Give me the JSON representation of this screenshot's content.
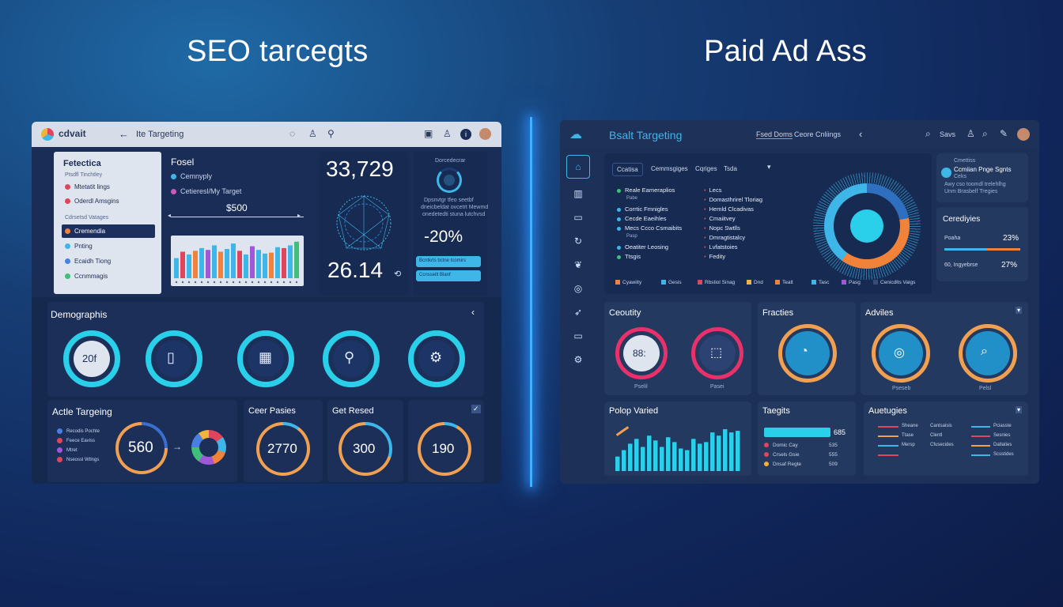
{
  "titles": {
    "left": "SEO tarcegts",
    "right": "Paid Ad Ass"
  },
  "left": {
    "topbar": {
      "logo": "cdvait",
      "tab": "Ite Targeting"
    },
    "sidebar": {
      "title": "Fetectica",
      "sub1": "Ptsdfl Tinchtley",
      "items1": [
        {
          "label": "Mtetatit lings",
          "color": "#e0455d"
        },
        {
          "label": "Oderdl Amsgins",
          "color": "#e0455d"
        }
      ],
      "sub2": "Cdrsetsd Vatages",
      "items2": [
        {
          "label": "Cremendia",
          "color": "#f0823a",
          "active": true
        },
        {
          "label": "Pnting",
          "color": "#3fb6e8"
        },
        {
          "label": "Ecaidh Tiong",
          "color": "#4a7fe0"
        },
        {
          "label": "Ccnmmagis",
          "color": "#3fbf7a"
        }
      ]
    },
    "focus": {
      "title": "Fosel",
      "opt1": "Cemnyply",
      "opt2": "Cetieresl/My Target",
      "value": "$500"
    },
    "bars": {
      "values": [
        44,
        58,
        52,
        60,
        66,
        62,
        72,
        58,
        64,
        76,
        60,
        52,
        70,
        62,
        54,
        56,
        68,
        66,
        72,
        80
      ],
      "colors": [
        "#3fb6e8",
        "#e0455d",
        "#3fb6e8",
        "#f0823a",
        "#3fb6e8",
        "#a058d8",
        "#3fb6e8",
        "#f0823a",
        "#3fb6e8",
        "#3fb6e8",
        "#e0455d",
        "#3fb6e8",
        "#a058d8",
        "#3fb6e8",
        "#3fb6e8",
        "#f0823a",
        "#3fb6e8",
        "#e0455d",
        "#3fb6e8",
        "#3fbf7a"
      ]
    },
    "metrics": {
      "big1": "33,729",
      "big2": "26.14"
    },
    "mini": {
      "title": "Dorcedecrar",
      "desc1": "Dpsnvtgr tfeo seetbf",
      "desc2": "dneicbeldat ovcetrt Mewmd",
      "desc3": "onedetedti stuna lutchvsd",
      "percent": "-20%",
      "btn1": "Bcntkrts bctne tcomirs",
      "btn2": "Ccnsseilt Blanf"
    },
    "demographics": {
      "title": "Demographis",
      "first_ring_text": "20f"
    },
    "bottom": {
      "targeting_title": "Actle Targeing",
      "legend": [
        {
          "label": "Recodis Pochte",
          "color": "#4a7fe0"
        },
        {
          "label": "Feece Eaviss",
          "color": "#e0455d"
        },
        {
          "label": "Mtret",
          "color": "#a058d8"
        },
        {
          "label": "Nseossl Wtlngs",
          "color": "#e0455d"
        }
      ],
      "targeting_value": "560",
      "c1_title": "Ceer Pasies",
      "c1_value": "2770",
      "c2_title": "Get Resed",
      "c2_value": "300",
      "c3_value": "190"
    }
  },
  "right": {
    "topbar": {
      "title": "Bsalt Targeting",
      "tab1": "Fsed Doms",
      "tab2": "Ceore Cnliings",
      "search": "Savs"
    },
    "tabs": [
      "Ccatisa",
      "Cemmsgiges",
      "Cqriges",
      "Tsda"
    ],
    "list1": [
      {
        "label": "Reale Eameraplios",
        "color": "#3fbf7a",
        "sub": "Pabe"
      },
      {
        "label": "Corrtic Fmnigles",
        "color": "#3fb6e8",
        "sub": ""
      },
      {
        "label": "Cecde Eaeihles",
        "color": "#3fb6e8",
        "sub": ""
      },
      {
        "label": "Mecs Ccco Csmaibits",
        "color": "#3fb6e8",
        "sub": "Pasp"
      },
      {
        "label": "Oeatiter Leosing",
        "color": "#3fb6e8",
        "sub": ""
      },
      {
        "label": "Ttsgis",
        "color": "#3fbf7a",
        "sub": ""
      }
    ],
    "list2": [
      "Lecs",
      "Domasthrirel Tloriag",
      "Hemld Clcadivas",
      "Cmaiitvey",
      "Nopc Swtlls",
      "Dmragtistalcy",
      "Lvfatstoies",
      "Fedity"
    ],
    "legend": [
      {
        "label": "Cyawiity",
        "color": "#f0823a"
      },
      {
        "label": "Gesis",
        "color": "#3fb6e8"
      },
      {
        "label": "Rbstiol Sinag",
        "color": "#e0455d"
      },
      {
        "label": "Dnd",
        "color": "#f0b43a"
      },
      {
        "label": "Tealt",
        "color": "#f0823a"
      },
      {
        "label": "Tasc",
        "color": "#3fb6e8"
      },
      {
        "label": "Pasg",
        "color": "#a058d8"
      },
      {
        "label": "Cenicdlts Vaigs",
        "color": "#3b4d74"
      }
    ],
    "side": {
      "head": "Cmettiss",
      "title": "Ccmiian Pnge Sgnts",
      "sub": "Ceks",
      "desc1": "Awy cso toomdl trelehlhg",
      "desc2": "Unm Brasbelf Tregies"
    },
    "strategies": {
      "title": "Cerediyies",
      "r1_label": "Poaha",
      "r1_value": "23%",
      "r2_label": "60, Ingyebrse",
      "r2_value": "27%"
    },
    "cards": {
      "c1_title": "Ceoutity",
      "c1_ring_text": "88:",
      "c1_lbl1": "Pselil",
      "c1_lbl2": "Pasei",
      "c2_title": "Fracties",
      "c3_title": "Adviles",
      "c3_lbl1": "Pseseb",
      "c3_lbl2": "Pelsl"
    },
    "bottom": {
      "chart_title": "Polop Varied",
      "bars": [
        18,
        26,
        34,
        40,
        30,
        44,
        38,
        30,
        42,
        36,
        28,
        26,
        40,
        34,
        36,
        48,
        44,
        52,
        48,
        50
      ],
      "targets_title": "Taegits",
      "targets_value": "685",
      "targets_rows": [
        {
          "label": "Domic Cay",
          "value": "535",
          "color": "#e0455d"
        },
        {
          "label": "Crsels Gsie",
          "value": "555",
          "color": "#e0455d"
        },
        {
          "label": "Dnsaf Regte",
          "value": "509",
          "color": "#f0b43a"
        }
      ],
      "aud_title": "Auetugies",
      "aud_rows": [
        {
          "a": "Sheane",
          "b": "Cantsaisis",
          "c": "Pciasste"
        },
        {
          "a": "Ttase",
          "b": "Clentl",
          "c": "Sesnies"
        },
        {
          "a": "Mersp",
          "b": "Cfusecides",
          "c": "Datlaties"
        },
        {
          "a": "",
          "b": "",
          "c": "Scsstides"
        }
      ]
    }
  }
}
